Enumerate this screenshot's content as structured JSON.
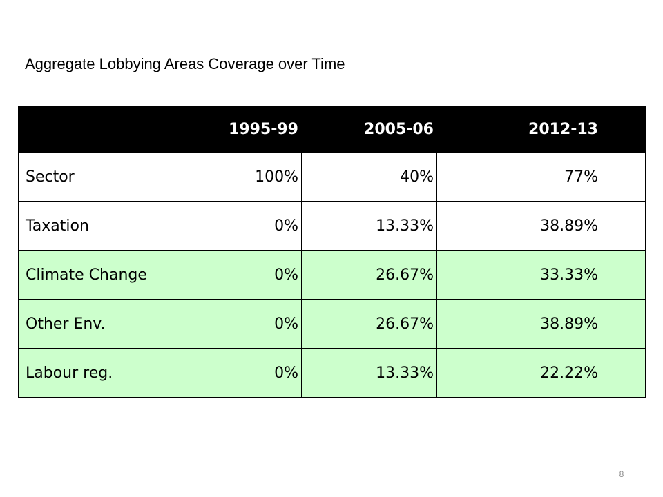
{
  "slide": {
    "title": "Aggregate Lobbying Areas Coverage over Time",
    "page_number": "8"
  },
  "table": {
    "headers": [
      "",
      "1995-99",
      "2005-06",
      "2012-13"
    ],
    "rows": [
      {
        "label": "Sector",
        "values": [
          "100%",
          "40%",
          "77%"
        ],
        "highlight": false
      },
      {
        "label": "Taxation",
        "values": [
          "0%",
          "13.33%",
          "38.89%"
        ],
        "highlight": false
      },
      {
        "label": "Climate Change",
        "values": [
          "0%",
          "26.67%",
          "33.33%"
        ],
        "highlight": true
      },
      {
        "label": "Other Env.",
        "values": [
          "0%",
          "26.67%",
          "38.89%"
        ],
        "highlight": true
      },
      {
        "label": "Labour reg.",
        "values": [
          "0%",
          "13.33%",
          "22.22%"
        ],
        "highlight": true
      }
    ]
  },
  "colors": {
    "header_background": "#000000",
    "header_text": "#ffffff",
    "highlight_row": "#ccffcc",
    "plain_row": "#ffffff",
    "border": "#000000",
    "page_number": "#8c8c8c"
  }
}
